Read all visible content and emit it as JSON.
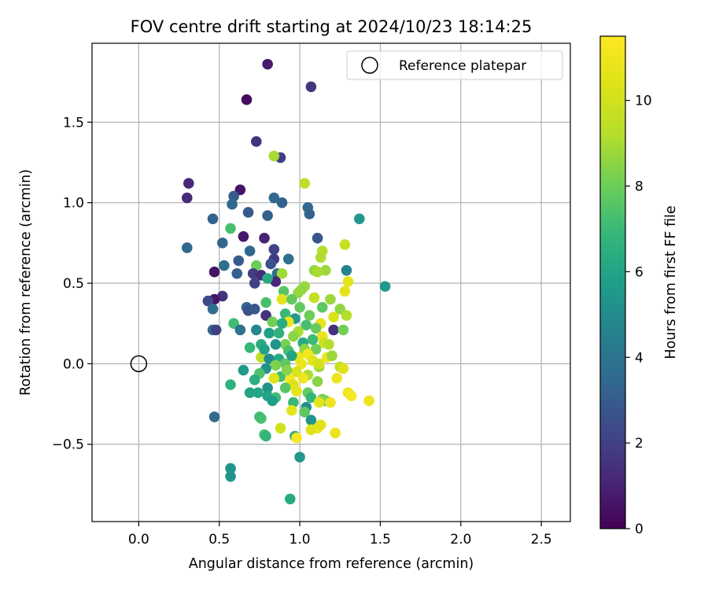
{
  "chart_data": {
    "type": "scatter",
    "title": "FOV centre drift starting at 2024/10/23 18:14:25",
    "xlabel": "Angular distance from reference (arcmin)",
    "ylabel": "Rotation from reference (arcmin)",
    "xlim": [
      -0.29,
      2.68
    ],
    "ylim": [
      -0.98,
      1.99
    ],
    "xticks": [
      0.0,
      0.5,
      1.0,
      1.5,
      2.0,
      2.5
    ],
    "xtick_labels": [
      "0.0",
      "0.5",
      "1.0",
      "1.5",
      "2.0",
      "2.5"
    ],
    "yticks": [
      -0.5,
      0.0,
      0.5,
      1.0,
      1.5
    ],
    "ytick_labels": [
      "−0.5",
      "0.0",
      "0.5",
      "1.0",
      "1.5"
    ],
    "grid": true,
    "legend": {
      "position": "top-right",
      "entries": [
        "Reference platepar"
      ]
    },
    "colorbar": {
      "label": "Hours from first FF file",
      "range": [
        0,
        11.5
      ],
      "ticks": [
        0,
        2,
        4,
        6,
        8,
        10
      ],
      "tick_labels": [
        "0",
        "2",
        "4",
        "6",
        "8",
        "10"
      ],
      "colormap": "viridis"
    },
    "reference_point": {
      "name": "Reference platepar",
      "x": 0.0,
      "y": 0.0
    },
    "points": [
      {
        "x": 0.8,
        "y": 1.86,
        "h": 0.8
      },
      {
        "x": 1.07,
        "y": 1.72,
        "h": 1.6
      },
      {
        "x": 0.67,
        "y": 1.64,
        "h": 0.3
      },
      {
        "x": 0.73,
        "y": 1.38,
        "h": 1.5
      },
      {
        "x": 0.88,
        "y": 1.28,
        "h": 1.9
      },
      {
        "x": 0.84,
        "y": 1.29,
        "h": 9.0
      },
      {
        "x": 0.31,
        "y": 1.12,
        "h": 1.2
      },
      {
        "x": 0.3,
        "y": 1.03,
        "h": 1.3
      },
      {
        "x": 0.63,
        "y": 1.08,
        "h": 0.6
      },
      {
        "x": 0.59,
        "y": 1.04,
        "h": 3.0
      },
      {
        "x": 1.03,
        "y": 1.12,
        "h": 9.4
      },
      {
        "x": 0.84,
        "y": 1.03,
        "h": 3.4
      },
      {
        "x": 0.89,
        "y": 1.0,
        "h": 3.2
      },
      {
        "x": 0.58,
        "y": 0.99,
        "h": 3.4
      },
      {
        "x": 0.68,
        "y": 0.94,
        "h": 3.0
      },
      {
        "x": 0.8,
        "y": 0.92,
        "h": 3.1
      },
      {
        "x": 1.05,
        "y": 0.97,
        "h": 3.5
      },
      {
        "x": 1.06,
        "y": 0.93,
        "h": 3.3
      },
      {
        "x": 1.37,
        "y": 0.9,
        "h": 5.5
      },
      {
        "x": 0.46,
        "y": 0.9,
        "h": 3.3
      },
      {
        "x": 0.57,
        "y": 0.84,
        "h": 7.3
      },
      {
        "x": 0.65,
        "y": 0.79,
        "h": 0.7
      },
      {
        "x": 0.78,
        "y": 0.78,
        "h": 1.0
      },
      {
        "x": 1.11,
        "y": 0.78,
        "h": 2.8
      },
      {
        "x": 0.52,
        "y": 0.75,
        "h": 3.4
      },
      {
        "x": 0.3,
        "y": 0.72,
        "h": 3.5
      },
      {
        "x": 0.69,
        "y": 0.7,
        "h": 3.5
      },
      {
        "x": 0.84,
        "y": 0.71,
        "h": 2.1
      },
      {
        "x": 1.28,
        "y": 0.74,
        "h": 9.7
      },
      {
        "x": 1.14,
        "y": 0.7,
        "h": 9.2
      },
      {
        "x": 1.13,
        "y": 0.66,
        "h": 9.1
      },
      {
        "x": 0.62,
        "y": 0.64,
        "h": 3.0
      },
      {
        "x": 0.84,
        "y": 0.65,
        "h": 1.8
      },
      {
        "x": 0.93,
        "y": 0.65,
        "h": 3.8
      },
      {
        "x": 0.82,
        "y": 0.62,
        "h": 2.6
      },
      {
        "x": 0.53,
        "y": 0.61,
        "h": 3.7
      },
      {
        "x": 0.73,
        "y": 0.61,
        "h": 8.0
      },
      {
        "x": 1.29,
        "y": 0.58,
        "h": 4.6
      },
      {
        "x": 1.16,
        "y": 0.58,
        "h": 8.8
      },
      {
        "x": 1.09,
        "y": 0.58,
        "h": 8.6
      },
      {
        "x": 1.11,
        "y": 0.57,
        "h": 9.0
      },
      {
        "x": 0.47,
        "y": 0.57,
        "h": 0.5
      },
      {
        "x": 0.61,
        "y": 0.56,
        "h": 3.1
      },
      {
        "x": 0.71,
        "y": 0.56,
        "h": 1.9
      },
      {
        "x": 0.76,
        "y": 0.55,
        "h": 1.3
      },
      {
        "x": 0.86,
        "y": 0.56,
        "h": 3.7
      },
      {
        "x": 0.89,
        "y": 0.56,
        "h": 8.9
      },
      {
        "x": 1.3,
        "y": 0.51,
        "h": 10.6
      },
      {
        "x": 0.85,
        "y": 0.51,
        "h": 1.2
      },
      {
        "x": 0.8,
        "y": 0.53,
        "h": 6.3
      },
      {
        "x": 0.72,
        "y": 0.5,
        "h": 2.0
      },
      {
        "x": 1.53,
        "y": 0.48,
        "h": 5.6
      },
      {
        "x": 1.03,
        "y": 0.48,
        "h": 8.8
      },
      {
        "x": 1.01,
        "y": 0.46,
        "h": 8.6
      },
      {
        "x": 0.9,
        "y": 0.45,
        "h": 7.6
      },
      {
        "x": 1.28,
        "y": 0.45,
        "h": 10.6
      },
      {
        "x": 0.99,
        "y": 0.44,
        "h": 8.7
      },
      {
        "x": 0.52,
        "y": 0.42,
        "h": 1.5
      },
      {
        "x": 0.47,
        "y": 0.4,
        "h": 0.6
      },
      {
        "x": 0.43,
        "y": 0.39,
        "h": 2.3
      },
      {
        "x": 0.79,
        "y": 0.38,
        "h": 7.3
      },
      {
        "x": 0.89,
        "y": 0.4,
        "h": 10.6
      },
      {
        "x": 0.95,
        "y": 0.4,
        "h": 7.8
      },
      {
        "x": 1.09,
        "y": 0.41,
        "h": 9.6
      },
      {
        "x": 1.19,
        "y": 0.4,
        "h": 8.8
      },
      {
        "x": 0.67,
        "y": 0.35,
        "h": 3.3
      },
      {
        "x": 0.68,
        "y": 0.33,
        "h": 2.6
      },
      {
        "x": 0.72,
        "y": 0.34,
        "h": 2.9
      },
      {
        "x": 0.46,
        "y": 0.34,
        "h": 3.7
      },
      {
        "x": 1.25,
        "y": 0.34,
        "h": 8.6
      },
      {
        "x": 1.14,
        "y": 0.35,
        "h": 7.7
      },
      {
        "x": 0.79,
        "y": 0.3,
        "h": 1.5
      },
      {
        "x": 0.91,
        "y": 0.31,
        "h": 7.0
      },
      {
        "x": 1.29,
        "y": 0.3,
        "h": 9.2
      },
      {
        "x": 1.21,
        "y": 0.29,
        "h": 10.3
      },
      {
        "x": 0.97,
        "y": 0.28,
        "h": 5.6
      },
      {
        "x": 0.93,
        "y": 0.26,
        "h": 11.0
      },
      {
        "x": 0.59,
        "y": 0.25,
        "h": 7.1
      },
      {
        "x": 0.83,
        "y": 0.26,
        "h": 8.1
      },
      {
        "x": 0.89,
        "y": 0.25,
        "h": 6.4
      },
      {
        "x": 1.04,
        "y": 0.24,
        "h": 7.3
      },
      {
        "x": 1.13,
        "y": 0.25,
        "h": 10.7
      },
      {
        "x": 0.46,
        "y": 0.21,
        "h": 3.6
      },
      {
        "x": 0.48,
        "y": 0.21,
        "h": 2.0
      },
      {
        "x": 0.63,
        "y": 0.21,
        "h": 3.9
      },
      {
        "x": 0.73,
        "y": 0.21,
        "h": 4.9
      },
      {
        "x": 0.81,
        "y": 0.19,
        "h": 5.8
      },
      {
        "x": 1.21,
        "y": 0.21,
        "h": 1.4
      },
      {
        "x": 1.27,
        "y": 0.21,
        "h": 8.1
      },
      {
        "x": 1.1,
        "y": 0.22,
        "h": 7.9
      },
      {
        "x": 0.99,
        "y": 0.2,
        "h": 9.0
      },
      {
        "x": 0.96,
        "y": 0.17,
        "h": 8.5
      },
      {
        "x": 1.14,
        "y": 0.17,
        "h": 10.8
      },
      {
        "x": 1.15,
        "y": 0.13,
        "h": 9.9
      },
      {
        "x": 1.02,
        "y": 0.13,
        "h": 6.3
      },
      {
        "x": 0.91,
        "y": 0.12,
        "h": 8.2
      },
      {
        "x": 0.85,
        "y": 0.12,
        "h": 5.4
      },
      {
        "x": 0.76,
        "y": 0.12,
        "h": 6.4
      },
      {
        "x": 0.69,
        "y": 0.1,
        "h": 6.9
      },
      {
        "x": 1.03,
        "y": 0.09,
        "h": 8.6
      },
      {
        "x": 1.1,
        "y": 0.09,
        "h": 8.1
      },
      {
        "x": 0.93,
        "y": 0.08,
        "h": 7.3
      },
      {
        "x": 1.05,
        "y": 0.06,
        "h": 11.2
      },
      {
        "x": 0.99,
        "y": 0.04,
        "h": 10.8
      },
      {
        "x": 1.17,
        "y": 0.04,
        "h": 10.9
      },
      {
        "x": 0.76,
        "y": 0.04,
        "h": 9.4
      },
      {
        "x": 0.81,
        "y": 0.03,
        "h": 5.0
      },
      {
        "x": 0.87,
        "y": 0.03,
        "h": 6.2
      },
      {
        "x": 1.2,
        "y": 0.05,
        "h": 8.8
      },
      {
        "x": 1.08,
        "y": 0.02,
        "h": 10.5
      },
      {
        "x": 1.01,
        "y": 0.0,
        "h": 10.9
      },
      {
        "x": 0.91,
        "y": 0.0,
        "h": 7.7
      },
      {
        "x": 0.85,
        "y": -0.01,
        "h": 8.3
      },
      {
        "x": 1.25,
        "y": -0.02,
        "h": 9.5
      },
      {
        "x": 1.27,
        "y": -0.03,
        "h": 10.4
      },
      {
        "x": 1.12,
        "y": -0.02,
        "h": 8.9
      },
      {
        "x": 0.79,
        "y": -0.03,
        "h": 5.3
      },
      {
        "x": 0.65,
        "y": -0.04,
        "h": 5.6
      },
      {
        "x": 0.75,
        "y": -0.06,
        "h": 7.4
      },
      {
        "x": 0.98,
        "y": -0.05,
        "h": 10.2
      },
      {
        "x": 1.05,
        "y": -0.07,
        "h": 9.1
      },
      {
        "x": 0.88,
        "y": -0.08,
        "h": 7.2
      },
      {
        "x": 1.23,
        "y": -0.09,
        "h": 10.9
      },
      {
        "x": 1.02,
        "y": -0.09,
        "h": 11.0
      },
      {
        "x": 0.94,
        "y": -0.1,
        "h": 11.2
      },
      {
        "x": 0.84,
        "y": -0.09,
        "h": 10.5
      },
      {
        "x": 0.72,
        "y": -0.1,
        "h": 6.5
      },
      {
        "x": 0.96,
        "y": -0.13,
        "h": 10.4
      },
      {
        "x": 0.57,
        "y": -0.13,
        "h": 6.6
      },
      {
        "x": 1.11,
        "y": -0.11,
        "h": 8.5
      },
      {
        "x": 0.8,
        "y": -0.15,
        "h": 5.3
      },
      {
        "x": 0.91,
        "y": -0.15,
        "h": 7.6
      },
      {
        "x": 0.69,
        "y": -0.18,
        "h": 6.0
      },
      {
        "x": 0.74,
        "y": -0.18,
        "h": 6.1
      },
      {
        "x": 0.98,
        "y": -0.17,
        "h": 10.6
      },
      {
        "x": 1.05,
        "y": -0.18,
        "h": 7.9
      },
      {
        "x": 1.3,
        "y": -0.18,
        "h": 10.9
      },
      {
        "x": 1.32,
        "y": -0.2,
        "h": 11.3
      },
      {
        "x": 0.8,
        "y": -0.2,
        "h": 6.0
      },
      {
        "x": 0.85,
        "y": -0.21,
        "h": 7.1
      },
      {
        "x": 1.07,
        "y": -0.21,
        "h": 6.9
      },
      {
        "x": 1.16,
        "y": -0.23,
        "h": 7.6
      },
      {
        "x": 1.14,
        "y": -0.22,
        "h": 8.3
      },
      {
        "x": 1.12,
        "y": -0.24,
        "h": 10.6
      },
      {
        "x": 1.19,
        "y": -0.24,
        "h": 11.0
      },
      {
        "x": 1.43,
        "y": -0.23,
        "h": 10.9
      },
      {
        "x": 0.83,
        "y": -0.23,
        "h": 5.8
      },
      {
        "x": 0.96,
        "y": -0.24,
        "h": 7.0
      },
      {
        "x": 1.04,
        "y": -0.27,
        "h": 5.1
      },
      {
        "x": 0.95,
        "y": -0.29,
        "h": 10.6
      },
      {
        "x": 1.03,
        "y": -0.3,
        "h": 7.7
      },
      {
        "x": 0.47,
        "y": -0.33,
        "h": 3.6
      },
      {
        "x": 0.76,
        "y": -0.34,
        "h": 7.4
      },
      {
        "x": 0.75,
        "y": -0.33,
        "h": 7.2
      },
      {
        "x": 1.07,
        "y": -0.35,
        "h": 5.4
      },
      {
        "x": 1.11,
        "y": -0.4,
        "h": 10.8
      },
      {
        "x": 1.13,
        "y": -0.38,
        "h": 10.5
      },
      {
        "x": 0.88,
        "y": -0.4,
        "h": 10.0
      },
      {
        "x": 1.07,
        "y": -0.41,
        "h": 10.4
      },
      {
        "x": 1.22,
        "y": -0.43,
        "h": 10.9
      },
      {
        "x": 0.78,
        "y": -0.44,
        "h": 7.4
      },
      {
        "x": 0.79,
        "y": -0.45,
        "h": 6.8
      },
      {
        "x": 0.97,
        "y": -0.45,
        "h": 6.3
      },
      {
        "x": 0.98,
        "y": -0.46,
        "h": 11.3
      },
      {
        "x": 1.0,
        "y": -0.58,
        "h": 5.5
      },
      {
        "x": 0.57,
        "y": -0.65,
        "h": 5.4
      },
      {
        "x": 0.57,
        "y": -0.7,
        "h": 5.3
      },
      {
        "x": 0.94,
        "y": -0.84,
        "h": 6.3
      },
      {
        "x": 1.08,
        "y": 0.15,
        "h": 7.1
      },
      {
        "x": 1.0,
        "y": 0.35,
        "h": 7.8
      },
      {
        "x": 0.87,
        "y": 0.19,
        "h": 6.6
      },
      {
        "x": 0.95,
        "y": 0.05,
        "h": 6.0
      },
      {
        "x": 1.18,
        "y": 0.12,
        "h": 9.2
      },
      {
        "x": 1.06,
        "y": 0.3,
        "h": 8.0
      },
      {
        "x": 0.78,
        "y": 0.09,
        "h": 5.9
      },
      {
        "x": 0.92,
        "y": -0.04,
        "h": 8.4
      },
      {
        "x": 1.12,
        "y": 0.0,
        "h": 10.1
      }
    ]
  }
}
